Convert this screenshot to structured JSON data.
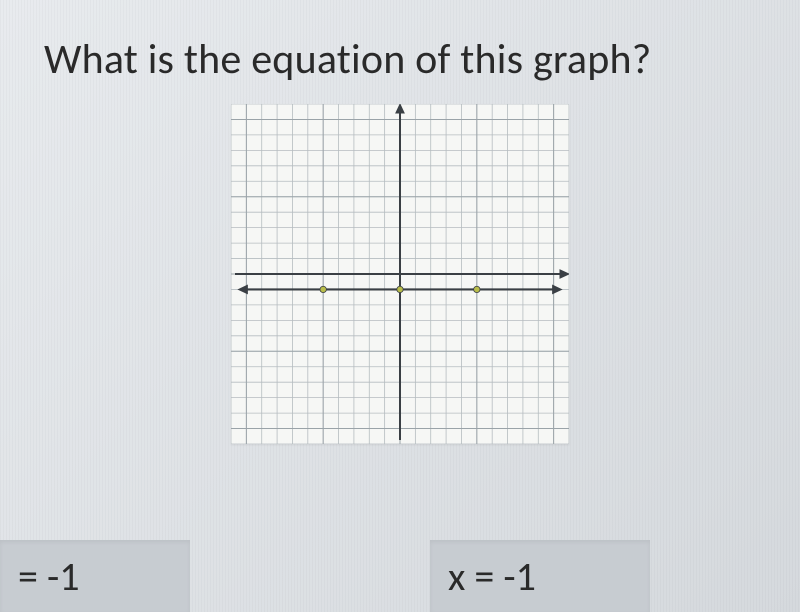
{
  "question": "What is the equation of this graph?",
  "answers": {
    "left": "= -1",
    "right": "x = -1"
  },
  "graph": {
    "type": "coordinate-grid",
    "background_color": "#f6f7f5",
    "grid_color": "#9aa3a8",
    "grid_minor_color": "#b5bcc0",
    "axis_color": "#3a3f44",
    "line_color": "#3a3f44",
    "point_color": "#b9bd4a",
    "xlim": [
      -11,
      11
    ],
    "ylim": [
      -11,
      11
    ],
    "grid_step": 1,
    "plot": {
      "type": "horizontal-line",
      "y": -1,
      "x_extent": [
        -10,
        10
      ],
      "arrows": true,
      "line_width": 2.2,
      "points": [
        {
          "x": -5,
          "y": -1
        },
        {
          "x": 0,
          "y": -1
        },
        {
          "x": 5,
          "y": -1
        }
      ],
      "point_radius": 3.2
    },
    "axis_arrows": true
  },
  "styling": {
    "page_bg_from": "#e8ebee",
    "page_bg_to": "#d5d9dd",
    "answer_box_bg": "#c7ccd1",
    "text_color": "#2a2a2a",
    "question_fontsize": 42,
    "answer_fontsize": 40
  }
}
